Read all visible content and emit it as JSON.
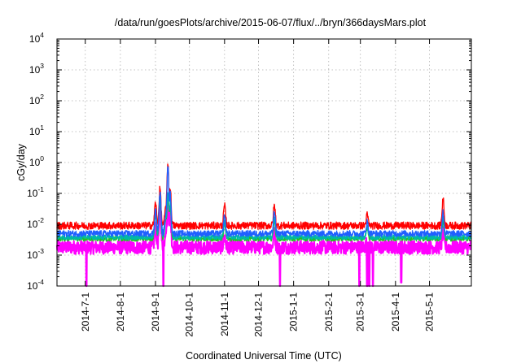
{
  "chart_data": {
    "type": "line",
    "title": "/data/run/goesPlots/archive/2015-06-07/flux/../bryn/366daysMars.plot",
    "xlabel": "Coordinated Universal Time (UTC)",
    "ylabel": "cGy/day",
    "yscale": "log",
    "ylim": [
      0.0001,
      10000
    ],
    "y_ticks": [
      {
        "base": "10",
        "exp": "-4",
        "value": 0.0001
      },
      {
        "base": "10",
        "exp": "-3",
        "value": 0.001
      },
      {
        "base": "10",
        "exp": "-2",
        "value": 0.01
      },
      {
        "base": "10",
        "exp": "-1",
        "value": 0.1
      },
      {
        "base": "10",
        "exp": "0",
        "value": 1
      },
      {
        "base": "10",
        "exp": "1",
        "value": 10
      },
      {
        "base": "10",
        "exp": "2",
        "value": 100
      },
      {
        "base": "10",
        "exp": "3",
        "value": 1000
      },
      {
        "base": "10",
        "exp": "4",
        "value": 10000
      }
    ],
    "xlim": [
      "2014-06-06",
      "2015-06-07"
    ],
    "x_ticks": [
      "2014-7-1",
      "2014-8-1",
      "2014-9-1",
      "2014-10-1",
      "2014-11-1",
      "2014-12-1",
      "2015-1-1",
      "2015-2-1",
      "2015-3-1",
      "2015-4-1",
      "2015-5-1"
    ],
    "grid": true,
    "series_colors": [
      "#ff0000",
      "#1f5fff",
      "#00b8a8",
      "#22c022",
      "#ff00ff"
    ],
    "baseline": [
      0.009,
      0.005,
      0.0038,
      0.0034,
      0.0018
    ],
    "events": [
      {
        "date": "2014-09-01",
        "values": [
          0.05,
          0.03,
          0.022,
          0.02,
          0.008
        ]
      },
      {
        "date": "2014-09-05",
        "values": [
          0.15,
          0.11,
          0.08,
          0.07,
          0.04
        ]
      },
      {
        "date": "2014-09-10",
        "values": [
          0.03,
          0.02,
          0.015,
          0.013,
          0.006
        ]
      },
      {
        "date": "2014-09-12",
        "values": [
          1.0,
          0.8,
          0.1,
          0.08,
          0.05
        ]
      },
      {
        "date": "2014-09-14",
        "values": [
          0.15,
          0.1,
          0.05,
          0.04,
          0.02
        ]
      },
      {
        "date": "2014-11-01",
        "values": [
          0.04,
          0.02,
          0.012,
          0.01,
          0.004
        ]
      },
      {
        "date": "2014-12-15",
        "values": [
          0.04,
          0.025,
          0.015,
          0.013,
          0.005
        ]
      },
      {
        "date": "2015-03-07",
        "values": [
          0.02,
          0.012,
          0.008,
          0.007,
          0.003
        ]
      },
      {
        "date": "2015-05-13",
        "values": [
          0.07,
          0.025,
          0.015,
          0.013,
          0.005
        ]
      }
    ],
    "dropouts": [
      {
        "date": "2014-07-02",
        "value": 0.0001
      },
      {
        "date": "2014-09-08",
        "value": 0.0001
      },
      {
        "date": "2014-12-20",
        "value": 0.0001
      },
      {
        "date": "2015-02-28",
        "value": 0.0001
      },
      {
        "date": "2015-03-07",
        "value": 0.0001
      },
      {
        "date": "2015-03-09",
        "value": 0.0001
      },
      {
        "date": "2015-03-12",
        "value": 0.0001
      },
      {
        "date": "2015-04-06",
        "value": 0.00013
      }
    ]
  }
}
